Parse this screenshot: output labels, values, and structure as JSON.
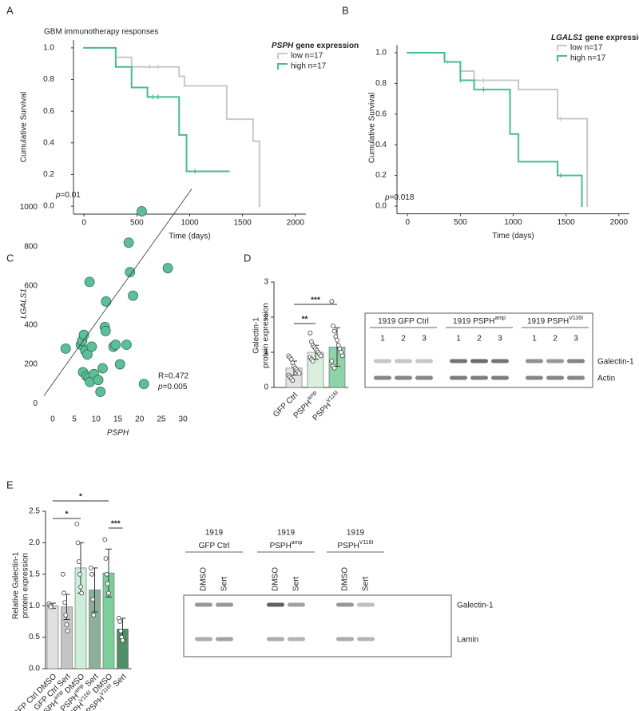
{
  "chart_data": [
    {
      "type": "survival",
      "panel": "A",
      "title": "GBM immunotherapy responses",
      "legend_title_gene": "PSPH",
      "legend_title": "gene expression",
      "x_label": "Time (days)",
      "y_label": "Cumulative Survival",
      "p_symbol": "p",
      "p_text": "=0.01",
      "xlim": [
        -100,
        2100
      ],
      "xticks": [
        0,
        500,
        1000,
        1500,
        2000
      ],
      "ylim": [
        -0.05,
        1.05
      ],
      "yticks": [
        {
          "value": 0,
          "label": "0.0"
        },
        0.2,
        0.4,
        0.6,
        0.8,
        {
          "value": 1,
          "label": "1.0"
        }
      ],
      "series": [
        {
          "name": "low n=17",
          "color": "#c8c8c8",
          "x": [
            0,
            300,
            450,
            900,
            950,
            1350,
            1600,
            1660
          ],
          "values": [
            1,
            0.94,
            0.88,
            0.82,
            0.76,
            0.55,
            0.41,
            0
          ],
          "censored": [
            620,
            700
          ]
        },
        {
          "name": "high n=17",
          "color": "#45bd93",
          "x": [
            0,
            300,
            450,
            600,
            900,
            970,
            1370
          ],
          "values": [
            1,
            0.88,
            0.75,
            0.69,
            0.45,
            0.22,
            0.22
          ],
          "censored": [
            650,
            700,
            1050
          ]
        }
      ]
    },
    {
      "type": "survival",
      "panel": "B",
      "legend_title_gene": "LGALS1",
      "legend_title": "gene expression",
      "x_label": "Time (days)",
      "y_label": "Cumulative Survival",
      "p_symbol": "p",
      "p_text": "=0.018",
      "xlim": [
        -100,
        2100
      ],
      "xticks": [
        0,
        500,
        1000,
        1500,
        2000
      ],
      "ylim": [
        -0.05,
        1.05
      ],
      "yticks": [
        {
          "value": 0,
          "label": "0.0"
        },
        0.2,
        0.4,
        0.6,
        0.8,
        {
          "value": 1,
          "label": "1.0"
        }
      ],
      "series": [
        {
          "name": "low n=17",
          "color": "#c8c8c8",
          "x": [
            0,
            350,
            500,
            630,
            1050,
            1420,
            1700
          ],
          "values": [
            1,
            0.94,
            0.88,
            0.82,
            0.76,
            0.57,
            0
          ],
          "censored": [
            380,
            720,
            1450
          ]
        },
        {
          "name": "high n=17",
          "color": "#45bd93",
          "x": [
            0,
            350,
            500,
            630,
            970,
            1050,
            1420,
            1650
          ],
          "values": [
            1,
            0.94,
            0.82,
            0.76,
            0.47,
            0.29,
            0.2,
            0
          ],
          "censored": [
            500,
            720,
            1450
          ]
        }
      ]
    },
    {
      "type": "scatter",
      "panel": "C",
      "x_label": "PSPH",
      "y_label": "LGALS1",
      "r_text": "R=0.472",
      "p_symbol": "p",
      "p_text": "=0.005",
      "color": "#5cbf98",
      "xlim": [
        -2,
        32
      ],
      "xticks": [
        0,
        5,
        10,
        15,
        20,
        25,
        30
      ],
      "ylim": [
        -40,
        1100
      ],
      "yticks": [
        0,
        200,
        400,
        600,
        800,
        1000
      ],
      "x": [
        3,
        6.5,
        6.8,
        7,
        7.2,
        7.5,
        7.8,
        8,
        8.3,
        8.6,
        8.5,
        9,
        9.5,
        10.5,
        11,
        11.5,
        12,
        12.2,
        12.3,
        14,
        14.5,
        15.5,
        17,
        17.5,
        17.8,
        18.5,
        20.5,
        21,
        26.5
      ],
      "values": [
        280,
        300,
        320,
        160,
        350,
        270,
        140,
        250,
        130,
        110,
        620,
        290,
        150,
        120,
        60,
        180,
        390,
        370,
        520,
        290,
        300,
        200,
        300,
        820,
        670,
        550,
        980,
        100,
        690
      ],
      "trend_line": {
        "x": [
          -2,
          32
        ],
        "values": [
          40,
          1094
        ]
      }
    },
    {
      "type": "bar",
      "panel": "D",
      "y_label": [
        "Galectin-1",
        "protein expression"
      ],
      "categories": [
        "GFP Ctrl",
        "PSPH",
        "PSPH"
      ],
      "category_superscripts": [
        null,
        "amp",
        "V116I"
      ],
      "category_suffixes": [
        null,
        null,
        null
      ],
      "values": [
        0.55,
        1.0,
        1.15
      ],
      "errors": [
        0.2,
        0.2,
        0.55
      ],
      "colors": [
        "#e3e3e3",
        "#d9f0e1",
        "#8ed4a8"
      ],
      "points": [
        [
          0.9,
          0.85,
          0.8,
          0.7,
          0.6,
          0.55,
          0.5,
          0.45,
          0.4,
          0.35,
          0.3,
          0.25,
          0.2
        ],
        [
          1.55,
          1.3,
          1.2,
          1.15,
          1.1,
          1.05,
          1.0,
          0.95,
          0.9,
          0.85,
          0.8,
          0.75
        ],
        [
          2.45,
          1.75,
          1.6,
          1.45,
          1.35,
          1.2,
          1.1,
          1.0,
          0.9,
          0.75,
          0.6,
          0.55
        ]
      ],
      "significance": [
        "**",
        "***"
      ],
      "ylim": [
        0,
        3
      ],
      "yticks": [
        0,
        1,
        2,
        3
      ]
    },
    {
      "type": "bar",
      "panel": "E",
      "y_label": [
        "Relative Galectin-1",
        "protein expression"
      ],
      "categories": [
        "GFP Ctrl DMSO",
        "GFP Ctrl Sert",
        "PSPH",
        "PSPH",
        "PSPH",
        "PSPH"
      ],
      "category_superscripts": [
        null,
        null,
        "amp",
        "amp",
        "V116I",
        "V116I"
      ],
      "category_suffixes": [
        null,
        null,
        "DMSO",
        "Sert",
        "DMSO",
        "Sert"
      ],
      "values": [
        1.0,
        0.98,
        1.6,
        1.25,
        1.52,
        0.63
      ],
      "errors": [
        0.04,
        0.2,
        0.4,
        0.35,
        0.38,
        0.17
      ],
      "colors": [
        "#e0e0e0",
        "#c4c4c4",
        "#cdeedb",
        "#8caf98",
        "#7ccf9b",
        "#4e8f66"
      ],
      "points": [
        [
          1.03,
          1.0,
          0.98
        ],
        [
          1.5,
          1.2,
          1.05,
          0.85,
          0.7,
          0.6
        ],
        [
          2.3,
          2.0,
          1.7,
          1.5,
          1.3,
          1.2
        ],
        [
          1.6,
          1.5,
          1.1,
          0.85
        ],
        [
          2.05,
          1.75,
          1.5,
          1.35,
          1.2
        ],
        [
          0.8,
          0.75,
          0.6,
          0.5,
          0.45
        ]
      ],
      "significance": [
        "*",
        "*",
        "***"
      ],
      "ylim": [
        0,
        2.5
      ],
      "yticks": [
        {
          "value": 0,
          "label": "0.0"
        },
        0.5,
        {
          "value": 1,
          "label": "1.0"
        },
        1.5,
        {
          "value": 2,
          "label": "2.0"
        },
        2.5
      ]
    }
  ],
  "blots": [
    {
      "headers": [
        {
          "text": "1919 GFP Ctrl"
        },
        {
          "text": "1919 PSPH",
          "sup": "amp"
        },
        {
          "text": "1919 PSPH",
          "sup": "V116I"
        }
      ],
      "lanes": [
        "1",
        "2",
        "3",
        "1",
        "2",
        "3",
        "1",
        "2",
        "3"
      ],
      "rows": [
        "Galectin-1",
        "Actin"
      ]
    },
    {
      "headers": [
        {
          "line1": "1919",
          "text": "GFP Ctrl"
        },
        {
          "line1": "1919",
          "text": "PSPH",
          "sup": "amp"
        },
        {
          "line1": "1919",
          "text": "PSPH",
          "sup": "V116I"
        }
      ],
      "lanes": [
        "DMSO",
        "Sert",
        "DMSO",
        "Sert",
        "DMSO",
        "Sert"
      ],
      "rows": [
        "Galectin-1",
        "Lamin"
      ]
    }
  ]
}
